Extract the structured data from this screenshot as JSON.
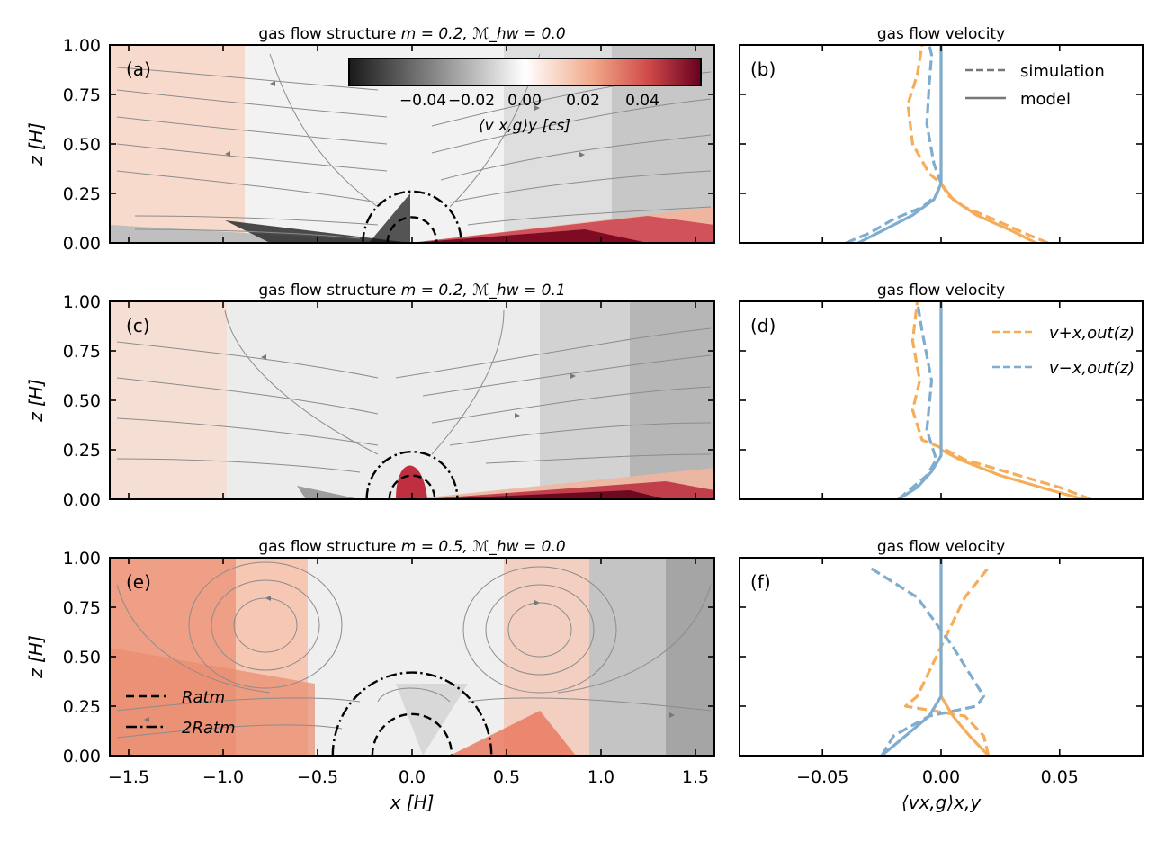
{
  "chart_data": [
    {
      "id": "a",
      "type": "heatmap",
      "title": "gas flow structure  m = 0.2,  ℳhw = 0.0",
      "title_main": "gas flow structure  ",
      "title_params": "m = 0.2,  ℳ_hw = 0.0",
      "panel_label": "(a)",
      "xlim": [
        -1.6,
        1.6
      ],
      "ylim": [
        0.0,
        1.0
      ],
      "ylabel": "z [H]",
      "yticks": [
        "0.00",
        "0.25",
        "0.50",
        "0.75",
        "1.00"
      ],
      "r_atm": 0.13,
      "two_r_atm": 0.26,
      "colorbar": {
        "ticks": [
          "−0.04",
          "−0.02",
          "0.00",
          "0.02",
          "0.04"
        ],
        "label": "⟨v x,g⟩y  [cs]",
        "range": [
          -0.055,
          0.055
        ]
      }
    },
    {
      "id": "b",
      "type": "line",
      "title": "gas flow velocity",
      "panel_label": "(b)",
      "xlim": [
        -0.085,
        0.085
      ],
      "ylim": [
        0.0,
        1.0
      ],
      "legend": [
        {
          "label": "simulation",
          "style": "dashed"
        },
        {
          "label": "model",
          "style": "solid"
        }
      ],
      "series": [
        {
          "name": "v+ simulation",
          "color": "#f5ad5a",
          "style": "dashed",
          "x": [
            0.045,
            0.035,
            0.022,
            0.01,
            0.003,
            0.0,
            -0.005,
            -0.012,
            -0.014,
            -0.01,
            -0.008
          ],
          "z": [
            0.0,
            0.05,
            0.12,
            0.18,
            0.24,
            0.3,
            0.35,
            0.5,
            0.7,
            0.85,
            1.0
          ]
        },
        {
          "name": "v- simulation",
          "color": "#7fadd0",
          "style": "dashed",
          "x": [
            -0.04,
            -0.03,
            -0.02,
            -0.008,
            -0.002,
            0.0,
            -0.003,
            -0.006,
            -0.005,
            -0.004,
            -0.005
          ],
          "z": [
            0.0,
            0.05,
            0.12,
            0.18,
            0.24,
            0.3,
            0.4,
            0.6,
            0.8,
            0.95,
            1.0
          ]
        },
        {
          "name": "v+ model",
          "color": "#f5ad5a",
          "style": "solid",
          "x": [
            0.04,
            0.03,
            0.015,
            0.005,
            0.0,
            0.0
          ],
          "z": [
            0.0,
            0.06,
            0.14,
            0.22,
            0.3,
            1.0
          ]
        },
        {
          "name": "v- model",
          "color": "#7fadd0",
          "style": "solid",
          "x": [
            -0.035,
            -0.025,
            -0.012,
            -0.003,
            0.0,
            0.0
          ],
          "z": [
            0.0,
            0.06,
            0.14,
            0.22,
            0.3,
            1.0
          ]
        }
      ]
    },
    {
      "id": "c",
      "type": "heatmap",
      "title": "gas flow structure  m = 0.2,  ℳhw = 0.1",
      "title_main": "gas flow structure  ",
      "title_params": "m = 0.2,  ℳ_hw = 0.1",
      "panel_label": "(c)",
      "xlim": [
        -1.6,
        1.6
      ],
      "ylim": [
        0.0,
        1.0
      ],
      "ylabel": "z [H]",
      "yticks": [
        "0.00",
        "0.25",
        "0.50",
        "0.75",
        "1.00"
      ],
      "r_atm": 0.12,
      "two_r_atm": 0.24
    },
    {
      "id": "d",
      "type": "line",
      "title": "gas flow velocity",
      "panel_label": "(d)",
      "xlim": [
        -0.085,
        0.085
      ],
      "ylim": [
        0.0,
        1.0
      ],
      "legend": [
        {
          "label": "v+x,out(z)",
          "color": "#f5ad5a"
        },
        {
          "label": "v−x,out(z)",
          "color": "#7fadd0"
        }
      ],
      "series": [
        {
          "name": "v+ simulation",
          "color": "#f5ad5a",
          "style": "dashed",
          "x": [
            0.063,
            0.05,
            0.03,
            0.01,
            0.002,
            -0.008,
            -0.012,
            -0.009,
            -0.012,
            -0.01
          ],
          "z": [
            0.0,
            0.06,
            0.13,
            0.2,
            0.25,
            0.3,
            0.45,
            0.6,
            0.8,
            1.0
          ]
        },
        {
          "name": "v- simulation",
          "color": "#7fadd0",
          "style": "dashed",
          "x": [
            -0.018,
            -0.012,
            -0.006,
            -0.002,
            -0.006,
            -0.004,
            -0.008,
            -0.01
          ],
          "z": [
            0.0,
            0.06,
            0.12,
            0.2,
            0.35,
            0.6,
            0.85,
            1.0
          ]
        },
        {
          "name": "v+ model",
          "color": "#f5ad5a",
          "style": "solid",
          "x": [
            0.06,
            0.045,
            0.025,
            0.008,
            0.0,
            0.0
          ],
          "z": [
            0.0,
            0.05,
            0.12,
            0.2,
            0.25,
            1.0
          ]
        },
        {
          "name": "v- model",
          "color": "#7fadd0",
          "style": "solid",
          "x": [
            -0.018,
            -0.01,
            -0.004,
            0.0,
            0.0
          ],
          "z": [
            0.0,
            0.06,
            0.14,
            0.22,
            1.0
          ]
        }
      ]
    },
    {
      "id": "e",
      "type": "heatmap",
      "title": "gas flow structure  m = 0.5,  ℳhw = 0.0",
      "title_main": "gas flow structure  ",
      "title_params": "m = 0.5,  ℳ_hw = 0.0",
      "panel_label": "(e)",
      "xlim": [
        -1.6,
        1.6
      ],
      "ylim": [
        0.0,
        1.0
      ],
      "ylabel": "z [H]",
      "xlabel": "x [H]",
      "yticks": [
        "0.00",
        "0.25",
        "0.50",
        "0.75",
        "1.00"
      ],
      "xticks": [
        "−1.5",
        "−1.0",
        "−0.5",
        "0.0",
        "0.5",
        "1.0",
        "1.5"
      ],
      "r_atm": 0.21,
      "two_r_atm": 0.42,
      "legend": [
        {
          "label": "Ratm",
          "style": "dashed"
        },
        {
          "label": "2Ratm",
          "style": "dashdot"
        }
      ]
    },
    {
      "id": "f",
      "type": "line",
      "title": "gas flow velocity",
      "panel_label": "(f)",
      "xlim": [
        -0.085,
        0.085
      ],
      "ylim": [
        0.0,
        1.0
      ],
      "xlabel": "⟨vx,g⟩x,y",
      "xticks": [
        "−0.05",
        "0.00",
        "0.05"
      ],
      "series": [
        {
          "name": "v+ simulation",
          "color": "#f5ad5a",
          "style": "dashed",
          "x": [
            0.02,
            0.018,
            0.01,
            -0.015,
            -0.01,
            0.0,
            0.01,
            0.02
          ],
          "z": [
            0.0,
            0.1,
            0.2,
            0.25,
            0.3,
            0.55,
            0.8,
            0.95
          ]
        },
        {
          "name": "v- simulation",
          "color": "#7fadd0",
          "style": "dashed",
          "x": [
            -0.025,
            -0.02,
            -0.005,
            0.015,
            0.018,
            0.005,
            -0.01,
            -0.03
          ],
          "z": [
            0.0,
            0.1,
            0.2,
            0.25,
            0.3,
            0.55,
            0.8,
            0.95
          ]
        },
        {
          "name": "v+ model",
          "color": "#f5ad5a",
          "style": "solid",
          "x": [
            0.02,
            0.012,
            0.005,
            0.0,
            0.0
          ],
          "z": [
            0.0,
            0.1,
            0.2,
            0.3,
            1.0
          ]
        },
        {
          "name": "v- model",
          "color": "#7fadd0",
          "style": "solid",
          "x": [
            -0.025,
            -0.015,
            -0.005,
            0.0,
            0.0
          ],
          "z": [
            0.0,
            0.1,
            0.2,
            0.3,
            1.0
          ]
        }
      ]
    }
  ]
}
